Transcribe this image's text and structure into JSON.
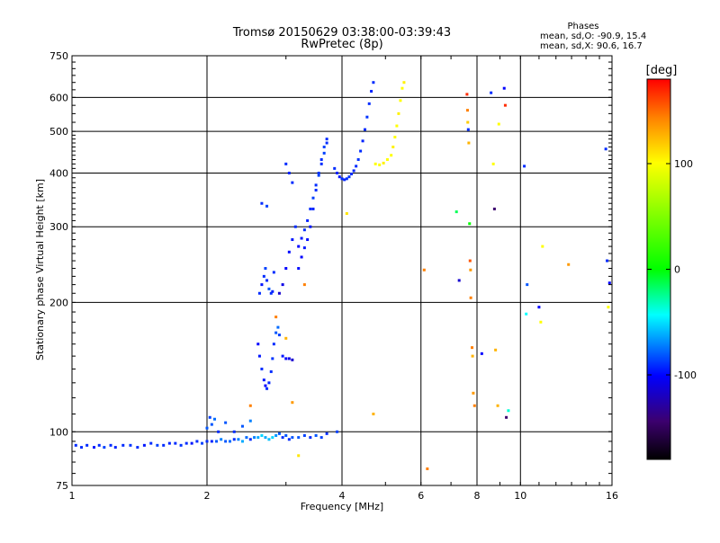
{
  "chart_data": {
    "type": "scatter",
    "title": "Tromsø 20150629 03:38:00-03:39:43",
    "subtitle": "RwPretec (8p)",
    "xlabel": "Frequency [MHz]",
    "ylabel": "Stationary phase Virtual Height [km]",
    "x_scale": "log",
    "y_scale": "log",
    "xlim": [
      1,
      16
    ],
    "ylim": [
      75,
      750
    ],
    "x_ticks": [
      1,
      2,
      4,
      6,
      8,
      10,
      16
    ],
    "y_ticks": [
      75,
      100,
      200,
      300,
      400,
      500,
      600,
      750
    ],
    "grid": true,
    "phase_stats": {
      "heading": "Phases",
      "line_o": "mean, sd,O: -90.9, 15.4",
      "line_x": "mean, sd,X:  90.6, 16.7"
    },
    "colorbar": {
      "label": "[deg]",
      "range": [
        -180,
        180
      ],
      "ticks": [
        100,
        0,
        -100
      ],
      "colors": [
        "#ff0000",
        "#ff8000",
        "#ffff00",
        "#00ff00",
        "#00ffff",
        "#0000ff",
        "#000000"
      ]
    },
    "series": [
      {
        "points": [
          [
            1.02,
            93,
            -110
          ],
          [
            1.05,
            92,
            -110
          ],
          [
            1.08,
            93,
            -110
          ],
          [
            1.12,
            92,
            -115
          ],
          [
            1.15,
            93,
            -110
          ],
          [
            1.18,
            92,
            -105
          ],
          [
            1.22,
            93,
            -110
          ],
          [
            1.25,
            92,
            -112
          ],
          [
            1.3,
            93,
            -110
          ],
          [
            1.35,
            93,
            -108
          ],
          [
            1.4,
            92,
            -110
          ],
          [
            1.45,
            93,
            -115
          ],
          [
            1.5,
            94,
            -110
          ],
          [
            1.55,
            93,
            -105
          ],
          [
            1.6,
            93,
            -110
          ],
          [
            1.65,
            94,
            -112
          ],
          [
            1.7,
            94,
            -110
          ],
          [
            1.75,
            93,
            -108
          ],
          [
            1.8,
            94,
            -110
          ],
          [
            1.85,
            94,
            -115
          ],
          [
            1.9,
            95,
            -110
          ],
          [
            1.95,
            94,
            -105
          ],
          [
            2.0,
            95,
            -110
          ],
          [
            2.05,
            95,
            -112
          ],
          [
            2.1,
            95,
            -100
          ],
          [
            2.15,
            96,
            -90
          ],
          [
            2.2,
            95,
            -100
          ],
          [
            2.25,
            95,
            -95
          ],
          [
            2.3,
            96,
            -110
          ],
          [
            2.35,
            96,
            -90
          ],
          [
            2.4,
            95,
            -80
          ],
          [
            2.45,
            97,
            -95
          ],
          [
            2.5,
            96,
            -110
          ],
          [
            2.55,
            97,
            -90
          ],
          [
            2.6,
            97,
            -80
          ],
          [
            2.65,
            98,
            -70
          ],
          [
            2.7,
            97,
            -80
          ],
          [
            2.75,
            96,
            -75
          ],
          [
            2.8,
            97,
            -70
          ],
          [
            2.85,
            98,
            -85
          ],
          [
            2.9,
            99,
            -100
          ],
          [
            2.95,
            97,
            -110
          ],
          [
            3.0,
            98,
            -100
          ],
          [
            3.05,
            96,
            -110
          ],
          [
            3.1,
            97,
            -100
          ],
          [
            3.2,
            97,
            -100
          ],
          [
            3.3,
            98,
            -105
          ],
          [
            3.4,
            97,
            -110
          ],
          [
            3.5,
            98,
            -100
          ],
          [
            3.6,
            97,
            -105
          ],
          [
            3.7,
            99,
            -110
          ],
          [
            3.9,
            100,
            -105
          ],
          [
            2.0,
            102,
            -100
          ],
          [
            2.03,
            108,
            -105
          ],
          [
            2.05,
            104,
            -100
          ],
          [
            2.08,
            107,
            -95
          ],
          [
            2.12,
            100,
            -110
          ],
          [
            2.2,
            105,
            -100
          ],
          [
            2.3,
            100,
            -110
          ],
          [
            2.4,
            103,
            -100
          ],
          [
            2.5,
            106,
            -90
          ],
          [
            2.6,
            160,
            -120
          ],
          [
            2.62,
            150,
            -115
          ],
          [
            2.65,
            140,
            -110
          ],
          [
            2.68,
            132,
            -115
          ],
          [
            2.7,
            128,
            -120
          ],
          [
            2.72,
            126,
            -110
          ],
          [
            2.75,
            130,
            -112
          ],
          [
            2.78,
            138,
            -110
          ],
          [
            2.8,
            148,
            -108
          ],
          [
            2.82,
            160,
            -110
          ],
          [
            2.85,
            170,
            -100
          ],
          [
            2.88,
            175,
            -95
          ],
          [
            2.9,
            168,
            -105
          ],
          [
            2.95,
            150,
            -115
          ],
          [
            3.0,
            148,
            -120
          ],
          [
            3.05,
            148,
            -125
          ],
          [
            3.1,
            147,
            -130
          ],
          [
            2.62,
            210,
            -110
          ],
          [
            2.65,
            220,
            -115
          ],
          [
            2.68,
            230,
            -110
          ],
          [
            2.7,
            240,
            -105
          ],
          [
            2.72,
            225,
            -110
          ],
          [
            2.75,
            215,
            -100
          ],
          [
            2.78,
            210,
            -110
          ],
          [
            2.8,
            212,
            -112
          ],
          [
            2.82,
            235,
            -110
          ],
          [
            2.65,
            340,
            -110
          ],
          [
            2.72,
            335,
            -105
          ],
          [
            2.9,
            210,
            -130
          ],
          [
            2.95,
            220,
            -125
          ],
          [
            3.0,
            240,
            -120
          ],
          [
            3.05,
            262,
            -118
          ],
          [
            3.1,
            280,
            -115
          ],
          [
            3.15,
            300,
            -110
          ],
          [
            3.2,
            270,
            -120
          ],
          [
            3.25,
            282,
            -115
          ],
          [
            3.3,
            295,
            -110
          ],
          [
            3.35,
            310,
            -112
          ],
          [
            3.4,
            330,
            -110
          ],
          [
            3.45,
            350,
            -105
          ],
          [
            3.5,
            375,
            -110
          ],
          [
            3.55,
            395,
            -105
          ],
          [
            3.6,
            420,
            -110
          ],
          [
            3.65,
            445,
            -105
          ],
          [
            3.7,
            470,
            -110
          ],
          [
            3.0,
            420,
            -110
          ],
          [
            3.05,
            400,
            -112
          ],
          [
            3.1,
            380,
            -110
          ],
          [
            3.2,
            240,
            -118
          ],
          [
            3.25,
            255,
            -120
          ],
          [
            3.3,
            268,
            -115
          ],
          [
            3.35,
            280,
            -118
          ],
          [
            3.4,
            300,
            -115
          ],
          [
            3.45,
            330,
            -112
          ],
          [
            3.5,
            365,
            -110
          ],
          [
            3.55,
            400,
            -108
          ],
          [
            3.6,
            430,
            -110
          ],
          [
            3.65,
            460,
            -105
          ],
          [
            3.7,
            480,
            -110
          ],
          [
            3.85,
            410,
            -110
          ],
          [
            3.9,
            400,
            -112
          ],
          [
            3.95,
            392,
            -115
          ],
          [
            4.0,
            388,
            -110
          ],
          [
            4.05,
            386,
            -112
          ],
          [
            4.1,
            388,
            -110
          ],
          [
            4.15,
            392,
            -108
          ],
          [
            4.2,
            398,
            -110
          ],
          [
            4.25,
            405,
            -112
          ],
          [
            4.3,
            415,
            -110
          ],
          [
            4.35,
            430,
            -108
          ],
          [
            4.4,
            450,
            -110
          ],
          [
            4.45,
            475,
            -112
          ],
          [
            4.5,
            505,
            -110
          ],
          [
            4.55,
            540,
            -108
          ],
          [
            4.6,
            580,
            -110
          ],
          [
            4.65,
            620,
            -112
          ],
          [
            4.7,
            650,
            -110
          ],
          [
            4.75,
            420,
            100
          ],
          [
            4.85,
            418,
            100
          ],
          [
            4.95,
            422,
            105
          ],
          [
            5.05,
            430,
            100
          ],
          [
            5.15,
            440,
            100
          ],
          [
            5.2,
            460,
            105
          ],
          [
            5.25,
            485,
            100
          ],
          [
            5.3,
            515,
            100
          ],
          [
            5.35,
            550,
            105
          ],
          [
            5.4,
            590,
            100
          ],
          [
            5.45,
            630,
            100
          ],
          [
            5.5,
            650,
            105
          ],
          [
            3.3,
            220,
            150
          ],
          [
            3.1,
            117,
            140
          ],
          [
            3.2,
            88,
            110
          ],
          [
            2.5,
            115,
            150
          ],
          [
            2.85,
            185,
            150
          ],
          [
            3.0,
            165,
            130
          ],
          [
            4.1,
            322,
            110
          ],
          [
            4.7,
            110,
            130
          ],
          [
            6.1,
            238,
            150
          ],
          [
            6.2,
            82,
            150
          ],
          [
            7.2,
            325,
            -20
          ],
          [
            7.3,
            225,
            -130
          ],
          [
            7.6,
            610,
            170
          ],
          [
            7.62,
            560,
            150
          ],
          [
            7.63,
            525,
            120
          ],
          [
            7.65,
            505,
            -110
          ],
          [
            7.67,
            470,
            130
          ],
          [
            7.7,
            305,
            0
          ],
          [
            7.72,
            250,
            160
          ],
          [
            7.74,
            238,
            140
          ],
          [
            7.75,
            205,
            150
          ],
          [
            7.8,
            157,
            150
          ],
          [
            7.82,
            150,
            130
          ],
          [
            7.85,
            123,
            140
          ],
          [
            7.9,
            115,
            150
          ],
          [
            8.2,
            152,
            -120
          ],
          [
            8.6,
            615,
            -110
          ],
          [
            8.7,
            420,
            100
          ],
          [
            8.75,
            330,
            -150
          ],
          [
            8.8,
            155,
            130
          ],
          [
            8.9,
            115,
            130
          ],
          [
            8.95,
            520,
            100
          ],
          [
            9.2,
            630,
            -120
          ],
          [
            9.25,
            575,
            170
          ],
          [
            9.3,
            108,
            -150
          ],
          [
            9.4,
            112,
            -50
          ],
          [
            10.2,
            415,
            -110
          ],
          [
            10.3,
            188,
            -60
          ],
          [
            10.35,
            220,
            -100
          ],
          [
            11.0,
            195,
            -120
          ],
          [
            11.1,
            180,
            100
          ],
          [
            11.2,
            270,
            100
          ],
          [
            12.8,
            245,
            140
          ],
          [
            15.5,
            455,
            -110
          ],
          [
            15.6,
            250,
            -110
          ],
          [
            15.7,
            195,
            100
          ],
          [
            15.8,
            222,
            -120
          ]
        ]
      }
    ]
  }
}
